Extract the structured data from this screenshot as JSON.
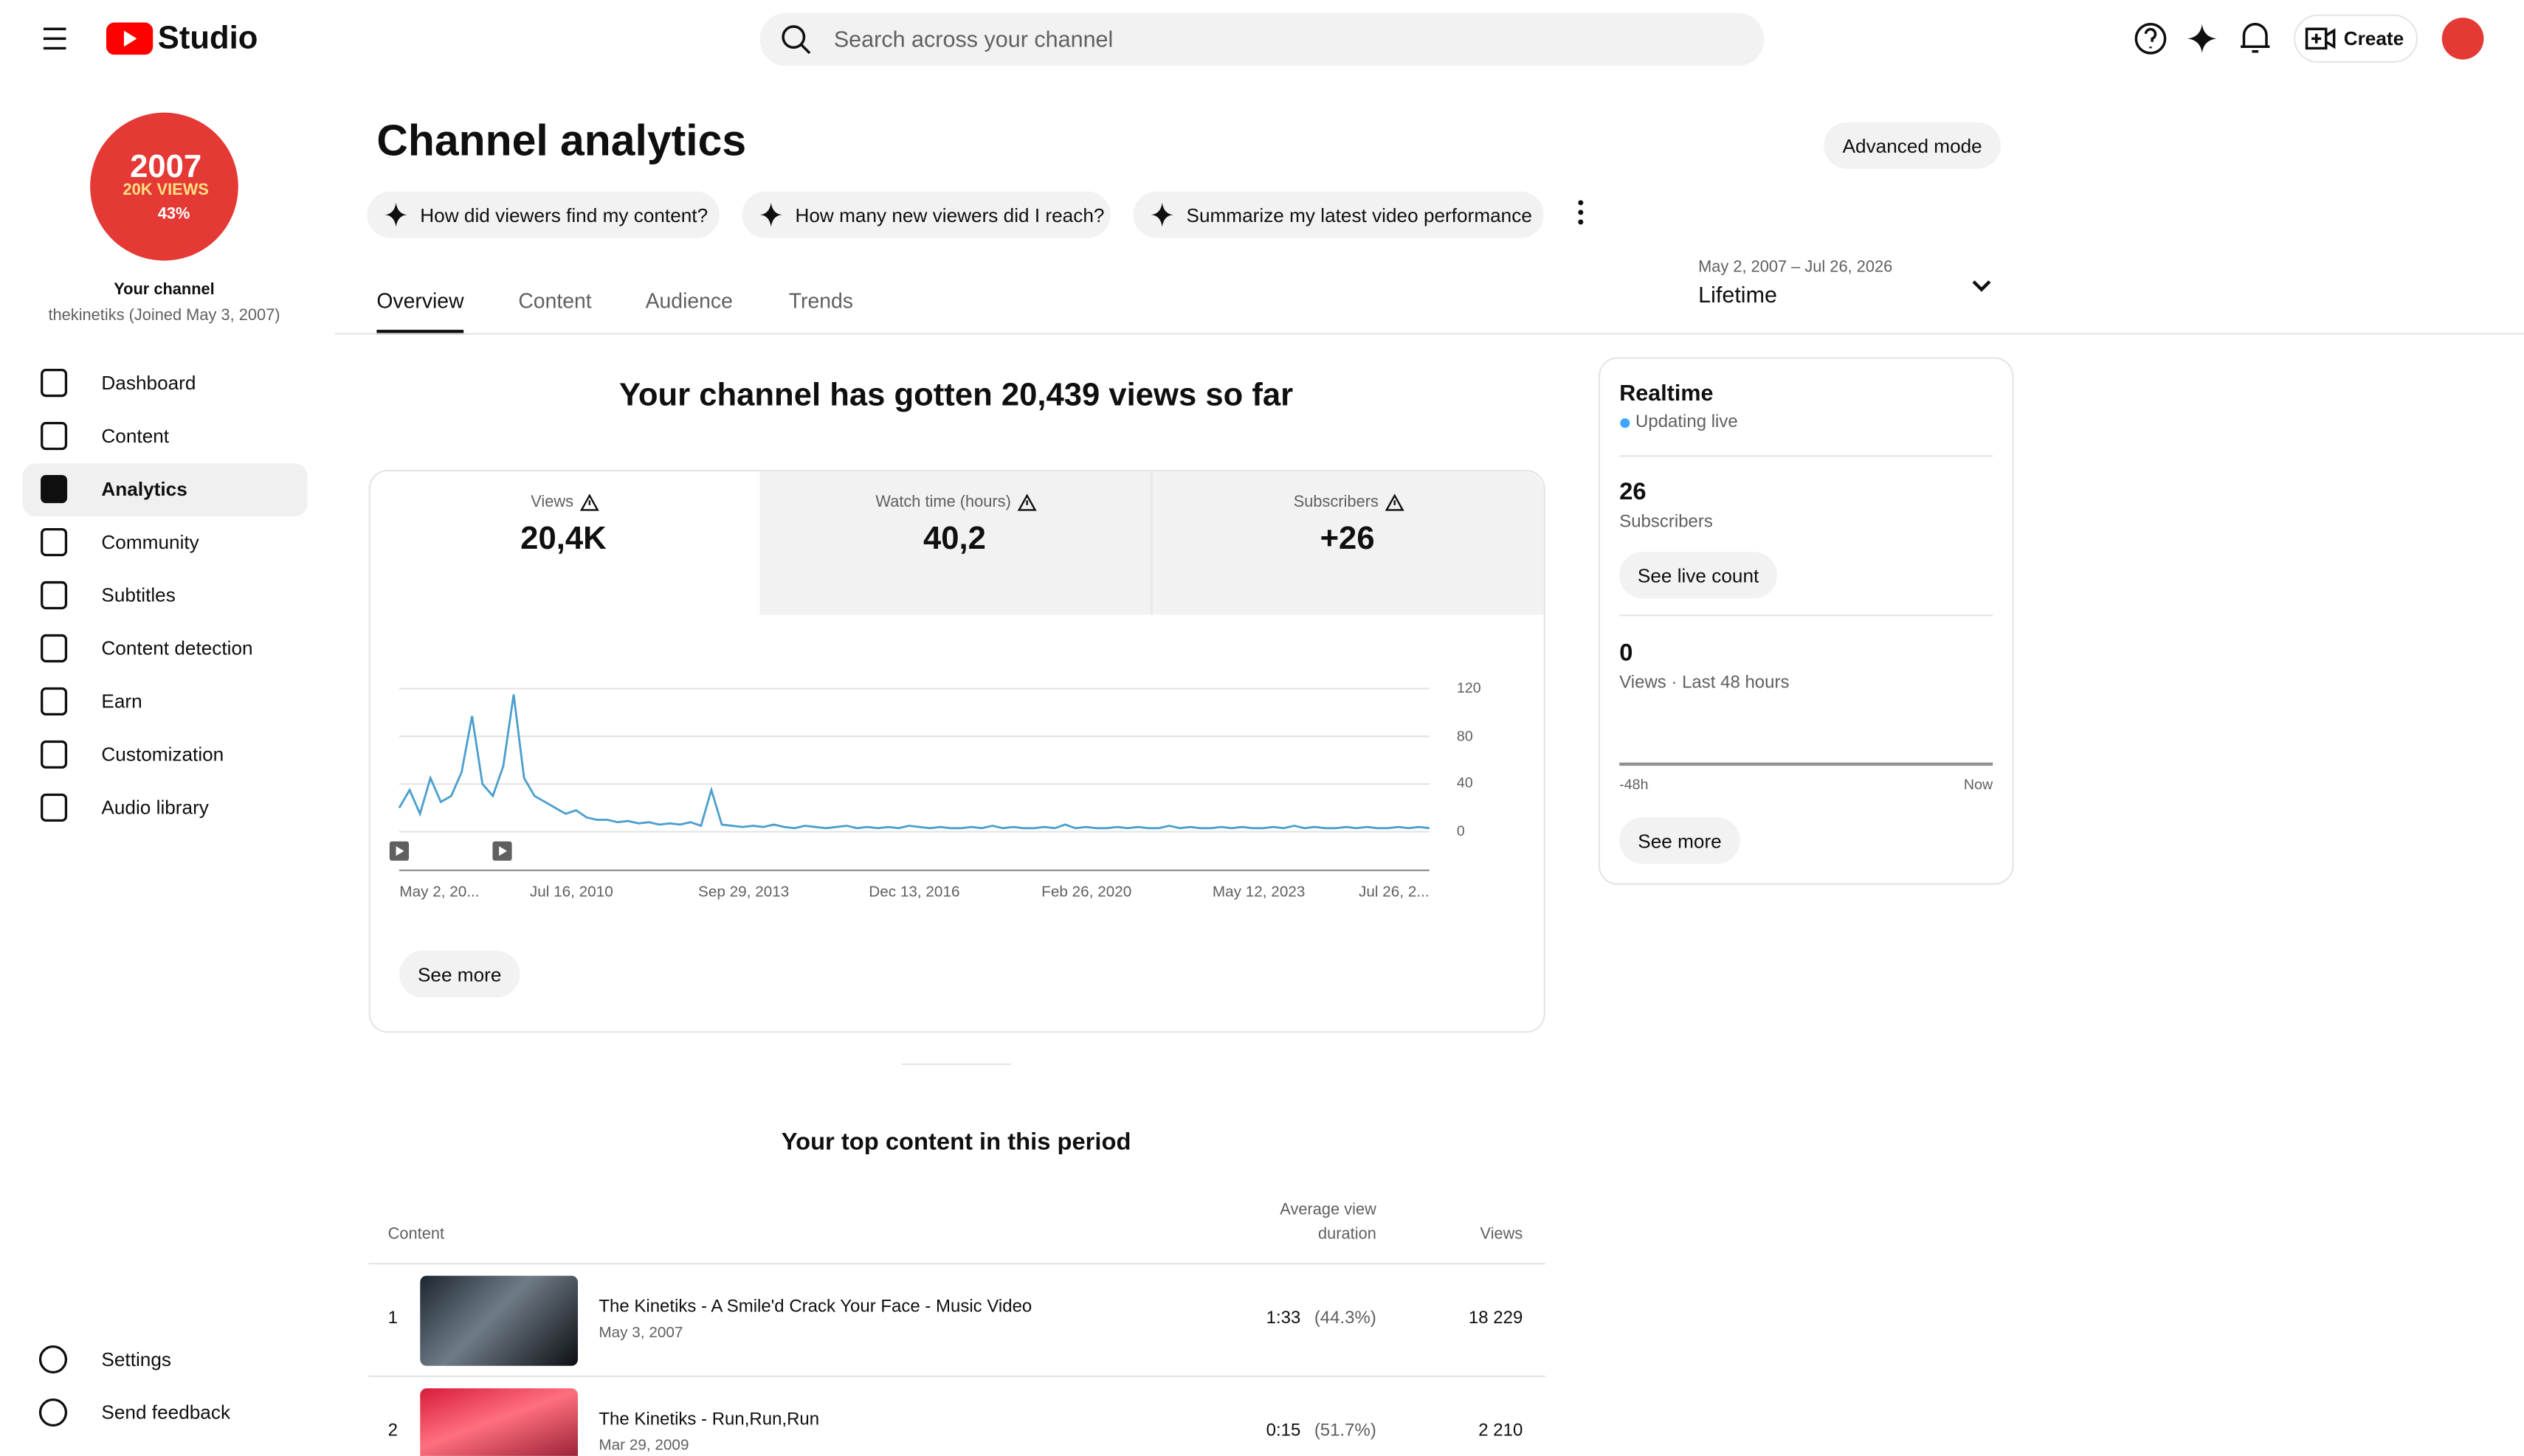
{
  "header": {
    "logo": "Studio",
    "search_placeholder": "Search across your channel",
    "create": "Create"
  },
  "sidebar": {
    "avatar": {
      "year": "2007",
      "views": "20K VIEWS",
      "percent": "43%"
    },
    "channel_label": "Your channel",
    "channel_handle": "thekinetiks (Joined May 3, 2007)",
    "nav": [
      "Dashboard",
      "Content",
      "Analytics",
      "Community",
      "Subtitles",
      "Content detection",
      "Earn",
      "Customization",
      "Audio library"
    ],
    "footer_nav": [
      "Settings",
      "Send feedback"
    ]
  },
  "main": {
    "title": "Channel analytics",
    "advanced_mode": "Advanced mode",
    "chips": [
      "How did viewers find my content?",
      "How many new viewers did I reach?",
      "Summarize my latest video performance"
    ],
    "tabs": [
      "Overview",
      "Content",
      "Audience",
      "Trends"
    ],
    "date_range": "May 2, 2007 – Jul 26, 2026",
    "period": "Lifetime",
    "summary": "Your channel has gotten 20,439 views so far",
    "metrics": [
      {
        "label": "Views",
        "value": "20,4K"
      },
      {
        "label": "Watch time (hours)",
        "value": "40,2"
      },
      {
        "label": "Subscribers",
        "value": "+26"
      }
    ],
    "views_chart": {
      "ylim": [
        0,
        120
      ],
      "yticks": [
        0,
        40,
        80,
        120
      ],
      "x_labels": [
        "May 2, 20...",
        "Jul 16, 2010",
        "Sep 29, 2013",
        "Dec 13, 2016",
        "Feb 26, 2020",
        "May 12, 2023",
        "Jul 26, 2..."
      ],
      "values": [
        20,
        35,
        15,
        45,
        25,
        30,
        50,
        97,
        40,
        30,
        55,
        115,
        45,
        30,
        25,
        20,
        15,
        18,
        12,
        10,
        10,
        8,
        9,
        7,
        8,
        6,
        7,
        6,
        8,
        5,
        35,
        6,
        5,
        4,
        5,
        4,
        6,
        4,
        3,
        5,
        4,
        3,
        4,
        5,
        3,
        4,
        3,
        4,
        3,
        5,
        4,
        3,
        4,
        3,
        3,
        4,
        3,
        5,
        3,
        4,
        3,
        3,
        4,
        3,
        6,
        3,
        4,
        3,
        3,
        4,
        3,
        4,
        3,
        3,
        5,
        3,
        4,
        3,
        3,
        4,
        3,
        4,
        3,
        3,
        4,
        3,
        5,
        3,
        4,
        3,
        3,
        4,
        3,
        4,
        3,
        3,
        4,
        3,
        4,
        3
      ]
    },
    "see_more": "See more",
    "top_content": {
      "title": "Your top content in this period",
      "columns": [
        "Content",
        "Average view",
        "duration",
        "Views"
      ],
      "rows": [
        {
          "rank": "1",
          "title": "The Kinetiks - A Smile'd Crack Your Face - Music Video",
          "date": "May 3, 2007",
          "duration": "1:33",
          "percent": "(44.3%)",
          "views": "18 229"
        },
        {
          "rank": "2",
          "title": "The Kinetiks - Run,Run,Run",
          "date": "Mar 29, 2009",
          "duration": "0:15",
          "percent": "(51.7%)",
          "views": "2 210"
        }
      ]
    }
  },
  "realtime": {
    "title": "Realtime",
    "status": "Updating live",
    "subscribers": "26",
    "subscribers_label": "Subscribers",
    "see_live_count": "See live count",
    "views": "0",
    "views_label": "Views · Last 48 hours",
    "axis_start": "-48h",
    "axis_end": "Now",
    "see_more": "See more"
  }
}
